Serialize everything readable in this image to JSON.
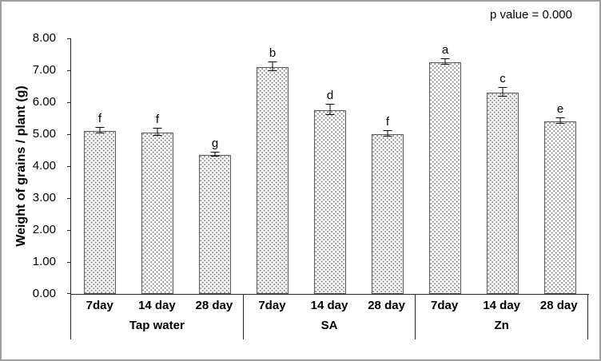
{
  "figure": {
    "border_color": "#9d9d9d",
    "bar_pattern_color": "#8a8a8a"
  },
  "chart_data": {
    "type": "bar",
    "title": "",
    "annotation": "p value = 0.000",
    "ylabel": "Weight of grains / plant  (g)",
    "xlabel": "",
    "ylim": [
      0,
      8
    ],
    "grid": false,
    "legend": null,
    "ytick_labels": [
      "0.00",
      "1.00",
      "2.00",
      "3.00",
      "4.00",
      "5.00",
      "6.00",
      "7.00",
      "8.00"
    ],
    "groups": [
      {
        "label": "Tap water",
        "bars": [
          {
            "category": "7day",
            "value": 5.1,
            "error": 0.08,
            "letter": "f"
          },
          {
            "category": "14 day",
            "value": 5.05,
            "error": 0.1,
            "letter": "f"
          },
          {
            "category": "28 day",
            "value": 4.35,
            "error": 0.05,
            "letter": "g"
          }
        ]
      },
      {
        "label": "SA",
        "bars": [
          {
            "category": "7day",
            "value": 7.1,
            "error": 0.12,
            "letter": "b"
          },
          {
            "category": "14 day",
            "value": 5.75,
            "error": 0.15,
            "letter": "d"
          },
          {
            "category": "28 day",
            "value": 5.0,
            "error": 0.07,
            "letter": "f"
          }
        ]
      },
      {
        "label": "Zn",
        "bars": [
          {
            "category": "7day",
            "value": 7.25,
            "error": 0.08,
            "letter": "a"
          },
          {
            "category": "14 day",
            "value": 6.3,
            "error": 0.12,
            "letter": "c"
          },
          {
            "category": "28 day",
            "value": 5.4,
            "error": 0.07,
            "letter": "e"
          }
        ]
      }
    ]
  }
}
